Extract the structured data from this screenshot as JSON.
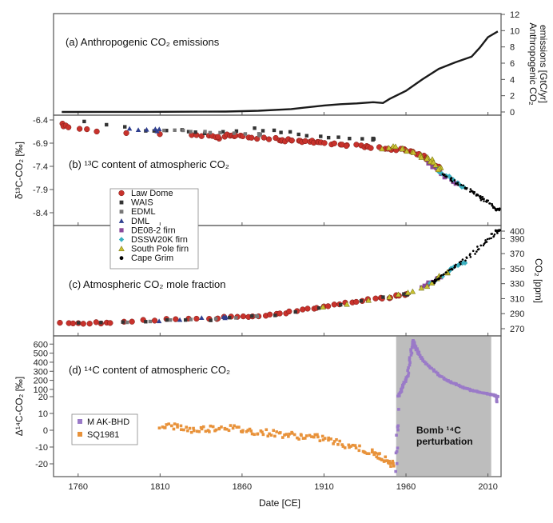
{
  "xlabel": "Date [CE]",
  "x_ticks": [
    1760,
    1810,
    1860,
    1910,
    1960,
    2010
  ],
  "xlim": [
    1745,
    2018
  ],
  "colors": {
    "emissions": "#1a1a1a",
    "law_dome": "#c8322c",
    "wais": "#333333",
    "edml": "#777777",
    "dml": "#2f3f8f",
    "de08": "#8a4a9a",
    "dssw20k": "#3ab0c0",
    "south_pole": "#c8c030",
    "cape_grim": "#000000",
    "mak_bhd": "#9a7ac8",
    "sq1981": "#e8923a",
    "bomb_shade": "#bdbdbd"
  },
  "panel_a": {
    "title": "(a) Anthropogenic CO₂ emissions",
    "ylabel_line1": "Anthropogenic CO₂",
    "ylabel_line2": "emissions [GtC/yr]",
    "yticks": [
      "0",
      "2",
      "4",
      "6",
      "8",
      "10",
      "12"
    ]
  },
  "panel_b": {
    "title": "(b) ¹³C content of atmospheric CO₂",
    "ylabel": "δ¹³C-CO₂ [‰]",
    "yticks": [
      "-6.4",
      "-6.9",
      "-7.4",
      "-7.9",
      "-8.4"
    ]
  },
  "panel_c": {
    "title": "(c) Atmospheric CO₂ mole fraction",
    "ylabel": "CO₂ [ppm]",
    "yticks": [
      "270",
      "290",
      "310",
      "330",
      "350",
      "370",
      "390",
      "400"
    ]
  },
  "panel_d": {
    "title": "(d) ¹⁴C content of atmospheric CO₂",
    "ylabel": "Δ¹⁴C-CO₂ [‰]",
    "yticks": [
      "-20",
      "-10",
      "0",
      "10",
      "20",
      "100",
      "200",
      "300",
      "400",
      "500",
      "600"
    ],
    "bomb_label_line1": "Bomb ¹⁴C",
    "bomb_label_line2": "perturbation"
  },
  "legend_bc": [
    "Law Dome",
    "WAIS",
    "EDML",
    "DML",
    "DE08-2 firn",
    "DSSW20K firn",
    "South Pole firn",
    "Cape Grim"
  ],
  "legend_d": [
    "M AK-BHD",
    "SQ1981"
  ],
  "chart_data": [
    {
      "type": "line",
      "title": "(a) Anthropogenic CO₂ emissions",
      "ylabel": "Anthropogenic CO₂ emissions [GtC/yr]",
      "ylim": [
        0,
        12
      ],
      "x": [
        1750,
        1800,
        1850,
        1870,
        1890,
        1910,
        1920,
        1930,
        1940,
        1946,
        1950,
        1960,
        1970,
        1980,
        1990,
        2000,
        2005,
        2010,
        2016
      ],
      "values": [
        0,
        0.01,
        0.05,
        0.15,
        0.35,
        0.8,
        0.95,
        1.05,
        1.2,
        1.1,
        1.6,
        2.6,
        4.0,
        5.3,
        6.1,
        6.8,
        7.9,
        9.2,
        9.9
      ]
    },
    {
      "type": "scatter",
      "title": "(b) ¹³C content of atmospheric CO₂",
      "ylabel": "δ¹³C-CO₂ [‰]",
      "ylim": [
        -8.55,
        -6.35
      ],
      "series": [
        {
          "name": "Law Dome",
          "x": [
            1750,
            1755,
            1770,
            1830,
            1840,
            1845,
            1850,
            1855,
            1860,
            1870,
            1880,
            1885,
            1890,
            1895,
            1900,
            1905,
            1910,
            1920,
            1925,
            1935,
            1940,
            1950,
            1955,
            1960,
            1965,
            1970,
            1975,
            1980
          ],
          "values": [
            -6.5,
            -6.55,
            -6.65,
            -6.74,
            -6.74,
            -6.78,
            -6.72,
            -6.76,
            -6.75,
            -6.8,
            -6.8,
            -6.85,
            -6.82,
            -6.86,
            -6.85,
            -6.88,
            -6.9,
            -6.92,
            -6.94,
            -6.98,
            -7.0,
            -7.02,
            -7.03,
            -7.05,
            -7.1,
            -7.18,
            -7.3,
            -7.42
          ]
        },
        {
          "name": "WAIS",
          "x": [
            1764,
            1800,
            1822,
            1836,
            1869,
            1883,
            1900,
            1920,
            1940
          ],
          "values": [
            -6.42,
            -6.62,
            -6.6,
            -6.7,
            -6.6,
            -6.66,
            -6.72,
            -6.78,
            -6.82
          ]
        },
        {
          "name": "EDML",
          "x": [
            1812,
            1830,
            1848,
            1870
          ],
          "values": [
            -6.62,
            -6.64,
            -6.66,
            -6.72
          ]
        },
        {
          "name": "DML",
          "x": [
            1790,
            1808
          ],
          "values": [
            -6.6,
            -6.62
          ]
        },
        {
          "name": "DE08-2 firn",
          "x": [
            1975,
            1980,
            1985,
            1990
          ],
          "values": [
            -7.35,
            -7.5,
            -7.65,
            -7.75
          ]
        },
        {
          "name": "DSSW20K firn",
          "x": [
            1980,
            1985,
            1990,
            1995
          ],
          "values": [
            -7.45,
            -7.6,
            -7.7,
            -7.85
          ]
        },
        {
          "name": "South Pole firn",
          "x": [
            1945,
            1955,
            1960,
            1968,
            1972,
            1976,
            1980
          ],
          "values": [
            -7.0,
            -6.98,
            -7.05,
            -7.15,
            -7.2,
            -7.28,
            -7.45
          ]
        },
        {
          "name": "Cape Grim",
          "x": [
            1982,
            1990,
            2000,
            2005,
            2010,
            2016
          ],
          "values": [
            -7.55,
            -7.75,
            -7.95,
            -8.05,
            -8.18,
            -8.33
          ]
        }
      ]
    },
    {
      "type": "scatter",
      "title": "(c) Atmospheric CO₂ mole fraction",
      "ylabel": "CO₂ [ppm]",
      "ylim": [
        265,
        402
      ],
      "series": [
        {
          "name": "Law Dome",
          "x": [
            1750,
            1760,
            1770,
            1780,
            1800,
            1820,
            1840,
            1850,
            1860,
            1870,
            1880,
            1890,
            1900,
            1910,
            1920,
            1930,
            1940,
            1950,
            1955,
            1960
          ],
          "values": [
            277,
            277,
            278,
            277,
            281,
            283,
            283,
            285,
            286,
            287,
            289,
            292,
            296,
            299,
            303,
            306,
            310,
            311,
            314,
            316
          ]
        },
        {
          "name": "WAIS",
          "x": [
            1760,
            1800,
            1840,
            1880,
            1920,
            1960
          ],
          "values": [
            278,
            280,
            282,
            288,
            302,
            316
          ]
        },
        {
          "name": "EDML",
          "x": [
            1790,
            1830,
            1870
          ],
          "values": [
            279,
            282,
            287
          ]
        },
        {
          "name": "DML",
          "x": [
            1810,
            1850
          ],
          "values": [
            281,
            285
          ]
        },
        {
          "name": "DE08-2 firn",
          "x": [
            1970,
            1975,
            1980
          ],
          "values": [
            325,
            331,
            338
          ]
        },
        {
          "name": "DSSW20K firn",
          "x": [
            1975,
            1985,
            1990,
            1995
          ],
          "values": [
            330,
            345,
            352,
            358
          ]
        },
        {
          "name": "South Pole firn",
          "x": [
            1910,
            1950,
            1965,
            1975,
            1985
          ],
          "values": [
            298,
            312,
            320,
            331,
            345
          ]
        },
        {
          "name": "Cape Grim",
          "x": [
            1976,
            1980,
            1990,
            2000,
            2010,
            2016
          ],
          "values": [
            331,
            338,
            353,
            369,
            388,
            401
          ]
        }
      ]
    },
    {
      "type": "scatter",
      "title": "(d) ¹⁴C content of atmospheric CO₂",
      "ylabel": "Δ¹⁴C-CO₂ [‰]",
      "ylim": [
        -25,
        650
      ],
      "axis_note": "broken axis: -20 to 20 linear lower part, 100 to 600 compressed upper part",
      "bomb_shade_x": [
        1954,
        2012
      ],
      "series": [
        {
          "name": "M AK-BHD",
          "x": [
            1954,
            1955,
            1957,
            1959,
            1961,
            1963,
            1964,
            1965,
            1967,
            1970,
            1975,
            1980,
            1985,
            1990,
            1995,
            2000,
            2005,
            2010,
            2013,
            2015,
            2016
          ],
          "values": [
            -22,
            5,
            80,
            180,
            250,
            480,
            640,
            600,
            520,
            430,
            340,
            260,
            200,
            160,
            120,
            90,
            70,
            50,
            40,
            25,
            15
          ]
        },
        {
          "name": "SQ1981",
          "x": [
            1810,
            1820,
            1830,
            1840,
            1850,
            1860,
            1870,
            1880,
            1890,
            1900,
            1910,
            1920,
            1930,
            1940,
            1945,
            1950,
            1953
          ],
          "values": [
            3,
            2,
            0,
            1,
            2,
            0,
            -1,
            -2,
            -3,
            -4,
            -5,
            -8,
            -10,
            -14,
            -16,
            -19,
            -21
          ]
        }
      ]
    }
  ]
}
